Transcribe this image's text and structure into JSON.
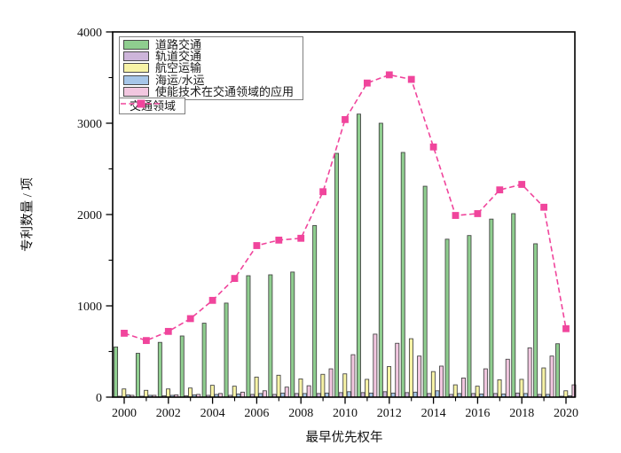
{
  "chart_data": {
    "type": "bar",
    "title": "",
    "xlabel": "最早优先权年",
    "ylabel": "专利数量 / 项",
    "ylim": [
      0,
      4000
    ],
    "yticks": [
      0,
      1000,
      2000,
      3000,
      4000
    ],
    "y_minor_step": 500,
    "grid": false,
    "legend_position": "upper-left",
    "categories": [
      2000,
      2001,
      2002,
      2003,
      2004,
      2005,
      2006,
      2007,
      2008,
      2009,
      2010,
      2011,
      2012,
      2013,
      2014,
      2015,
      2016,
      2017,
      2018,
      2019,
      2020
    ],
    "xtick_labeled_years": [
      2000,
      2002,
      2004,
      2006,
      2008,
      2010,
      2012,
      2014,
      2016,
      2018,
      2020
    ],
    "series": [
      {
        "name": "道路交通",
        "type": "bar",
        "color": "#8fce8f",
        "values": [
          550,
          480,
          600,
          670,
          810,
          1030,
          1330,
          1340,
          1370,
          1880,
          2670,
          3100,
          3000,
          2680,
          2310,
          1730,
          1770,
          1950,
          2010,
          1680,
          585
        ]
      },
      {
        "name": "轨道交通",
        "type": "bar",
        "color": "#cdb5da",
        "values": [
          10,
          10,
          15,
          15,
          20,
          20,
          30,
          30,
          40,
          40,
          50,
          50,
          60,
          50,
          40,
          30,
          40,
          40,
          45,
          30,
          10
        ]
      },
      {
        "name": "航空运输",
        "type": "bar",
        "color": "#f7f3a6",
        "values": [
          90,
          75,
          90,
          100,
          130,
          120,
          220,
          240,
          200,
          250,
          255,
          195,
          335,
          640,
          280,
          135,
          120,
          190,
          195,
          320,
          70
        ]
      },
      {
        "name": "海运/水运",
        "type": "bar",
        "color": "#a6c6e8",
        "values": [
          25,
          20,
          20,
          25,
          30,
          35,
          40,
          45,
          40,
          45,
          60,
          45,
          45,
          55,
          70,
          40,
          35,
          35,
          40,
          30,
          15
        ]
      },
      {
        "name": "使能技术在交通领域的应用",
        "type": "bar",
        "color": "#f2c7e0",
        "values": [
          20,
          20,
          25,
          30,
          40,
          55,
          70,
          110,
          125,
          310,
          465,
          690,
          590,
          450,
          340,
          210,
          310,
          415,
          540,
          450,
          135
        ]
      },
      {
        "name": "交通领域",
        "type": "line",
        "linestyle": "dashed",
        "marker": "square",
        "color": "#f0459c",
        "values": [
          700,
          620,
          720,
          860,
          1060,
          1300,
          1660,
          1720,
          1740,
          2250,
          3040,
          3440,
          3530,
          3480,
          2740,
          1990,
          2010,
          2270,
          2330,
          2080,
          750
        ]
      }
    ]
  },
  "axes": {
    "x_label": "最早优先权年",
    "y_label": "专利数量 / 项"
  }
}
